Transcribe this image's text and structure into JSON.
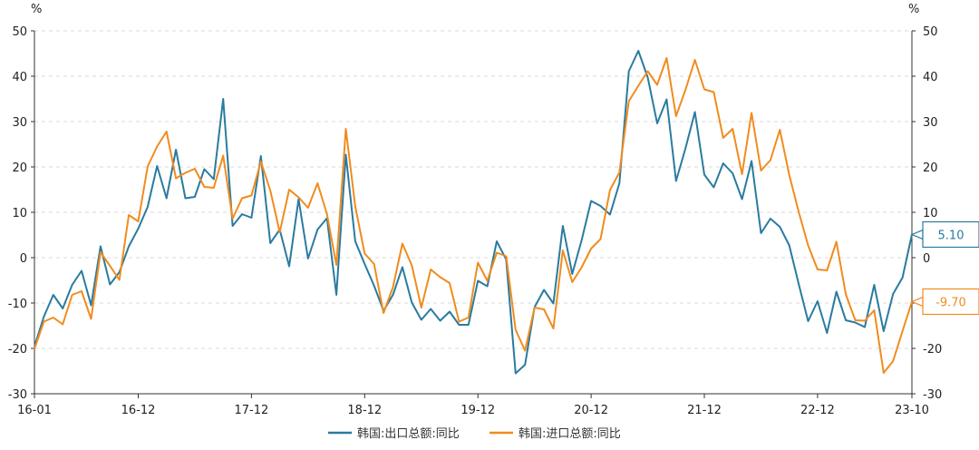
{
  "chart_data": {
    "type": "line",
    "y_unit_left": "%",
    "y_unit_right": "%",
    "ylim": [
      -30,
      50
    ],
    "yticks": [
      50,
      40,
      30,
      20,
      10,
      0,
      -10,
      -20,
      -30
    ],
    "x_start": "16-01",
    "x_end": "23-10",
    "x_tick_labels": [
      "16-01",
      "16-12",
      "17-12",
      "18-12",
      "19-12",
      "20-12",
      "21-12",
      "22-12",
      "23-10"
    ],
    "grid": true,
    "legend_position": "bottom",
    "series": [
      {
        "name": "韩国:出口总额:同比",
        "color": "#2a7ba0",
        "last_value_label": "5.10",
        "values": [
          -19.6,
          -13.0,
          -8.2,
          -11.2,
          -6.0,
          -2.9,
          -10.5,
          2.5,
          -5.9,
          -3.2,
          2.5,
          6.4,
          11.2,
          20.2,
          13.1,
          23.8,
          13.1,
          13.4,
          19.5,
          17.3,
          35.0,
          7.0,
          9.6,
          8.8,
          22.4,
          3.2,
          6.2,
          -1.9,
          12.9,
          -0.2,
          6.2,
          8.7,
          -8.2,
          22.7,
          3.6,
          -1.4,
          -6.2,
          -11.7,
          -8.2,
          -2.1,
          -9.9,
          -13.7,
          -11.3,
          -13.9,
          -11.9,
          -14.8,
          -14.8,
          -5.1,
          -6.3,
          3.6,
          -0.4,
          -25.5,
          -23.6,
          -10.9,
          -7.1,
          -10.1,
          7.0,
          -3.6,
          3.9,
          12.5,
          11.4,
          9.5,
          16.4,
          41.1,
          45.6,
          39.7,
          29.6,
          34.9,
          16.9,
          24.1,
          32.1,
          18.3,
          15.5,
          20.8,
          18.6,
          12.9,
          21.3,
          5.4,
          8.6,
          6.8,
          2.7,
          -5.8,
          -14.0,
          -9.6,
          -16.6,
          -7.5,
          -13.8,
          -14.3,
          -15.3,
          -6.0,
          -16.2,
          -8.0,
          -4.4,
          5.1
        ]
      },
      {
        "name": "韩国:进口总额:同比",
        "color": "#f08c1e",
        "last_value_label": "-9.70",
        "values": [
          -20.1,
          -14.1,
          -13.2,
          -14.7,
          -8.2,
          -7.4,
          -13.5,
          1.2,
          -1.8,
          -4.9,
          9.4,
          8.0,
          20.1,
          24.5,
          27.8,
          17.5,
          18.7,
          19.6,
          15.6,
          15.4,
          22.5,
          8.6,
          13.1,
          13.7,
          21.2,
          14.8,
          5.6,
          15.0,
          13.3,
          11.0,
          16.4,
          9.6,
          -1.6,
          28.4,
          11.3,
          0.9,
          -1.4,
          -12.2,
          -6.5,
          3.1,
          -1.7,
          -11.0,
          -2.6,
          -4.3,
          -5.6,
          -14.1,
          -13.2,
          -1.1,
          -5.1,
          1.1,
          0.3,
          -15.9,
          -20.5,
          -11.0,
          -11.4,
          -15.6,
          1.6,
          -5.4,
          -2.1,
          2.0,
          4.1,
          14.9,
          18.8,
          34.5,
          37.9,
          41.1,
          38.1,
          44.0,
          31.2,
          37.0,
          43.6,
          37.1,
          36.5,
          26.4,
          28.4,
          18.4,
          31.9,
          19.2,
          21.5,
          28.2,
          18.2,
          10.1,
          2.7,
          -2.6,
          -2.8,
          3.5,
          -8.1,
          -13.8,
          -13.9,
          -11.6,
          -25.4,
          -22.8,
          -16.2,
          -9.7
        ]
      }
    ]
  }
}
